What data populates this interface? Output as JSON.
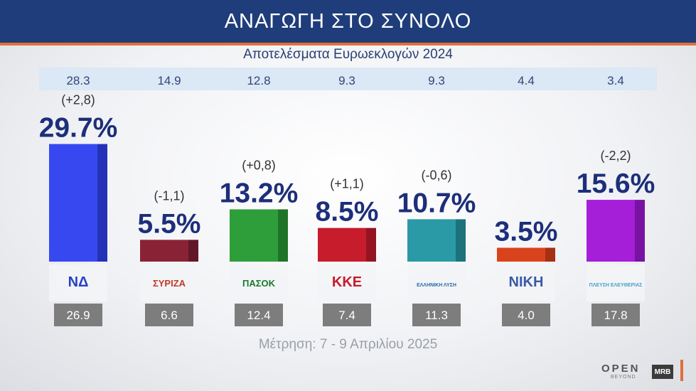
{
  "title": "ΑΝΑΓΩΓΗ ΣΤΟ ΣΥΝΟΛΟ",
  "subtitle": "Αποτελέσματα Ευρωεκλογών 2024",
  "footer_note": "Μέτρηση: 7 - 9 Απριλίου 2025",
  "brand": {
    "open": "OPEN",
    "beyond": "BEYOND",
    "mrb": "MRB"
  },
  "chart_data": {
    "type": "bar",
    "categories": [
      "ΝΔ",
      "ΣΥΡΙΖΑ",
      "ΠΑΣΟΚ",
      "ΚΚΕ",
      "ΕΛΛΗΝΙΚΗ ΛΥΣΗ",
      "ΝΙΚΗ",
      "ΠΛΕΥΣΗ ΕΛΕΥΘΕΡΙΑΣ"
    ],
    "values": [
      29.7,
      5.5,
      13.2,
      8.5,
      10.7,
      3.5,
      15.6
    ],
    "value_labels": [
      "29.7%",
      "5.5%",
      "13.2%",
      "8.5%",
      "10.7%",
      "3.5%",
      "15.6%"
    ],
    "euroelections_2024": [
      "28.3",
      "14.9",
      "12.8",
      "9.3",
      "9.3",
      "4.4",
      "3.4"
    ],
    "changes": [
      "(+2,8)",
      "(-1,1)",
      "(+0,8)",
      "(+1,1)",
      "(-0,6)",
      "",
      "(-2,2)"
    ],
    "previous_measurement": [
      "26.9",
      "6.6",
      "12.4",
      "7.4",
      "11.3",
      "4.0",
      "17.8"
    ],
    "colors": [
      "#3848f0",
      "#8a2236",
      "#2e9e3a",
      "#c61c2c",
      "#2a9aa6",
      "#d9431c",
      "#a51ed8"
    ],
    "side_colors": [
      "#2432b8",
      "#62172a",
      "#1f7428",
      "#941421",
      "#1c737c",
      "#a53014",
      "#7812a2"
    ],
    "logo_texts": [
      "ΝΔ",
      "ΣΥΡΙΖΑ",
      "ΠΑΣΟΚ",
      "ΚΚΕ",
      "ΕΛΛΗΝΙΚΗ ΛΥΣΗ",
      "ΝΙΚΗ",
      "ΠΛΕΥΣΗ ΕΛΕΥΘΕΡΙΑΣ"
    ],
    "logo_colors": [
      "#2840c8",
      "#c0392b",
      "#1a7a2a",
      "#c61c2c",
      "#2a6aa6",
      "#3a5aa8",
      "#4aa0c8"
    ]
  }
}
